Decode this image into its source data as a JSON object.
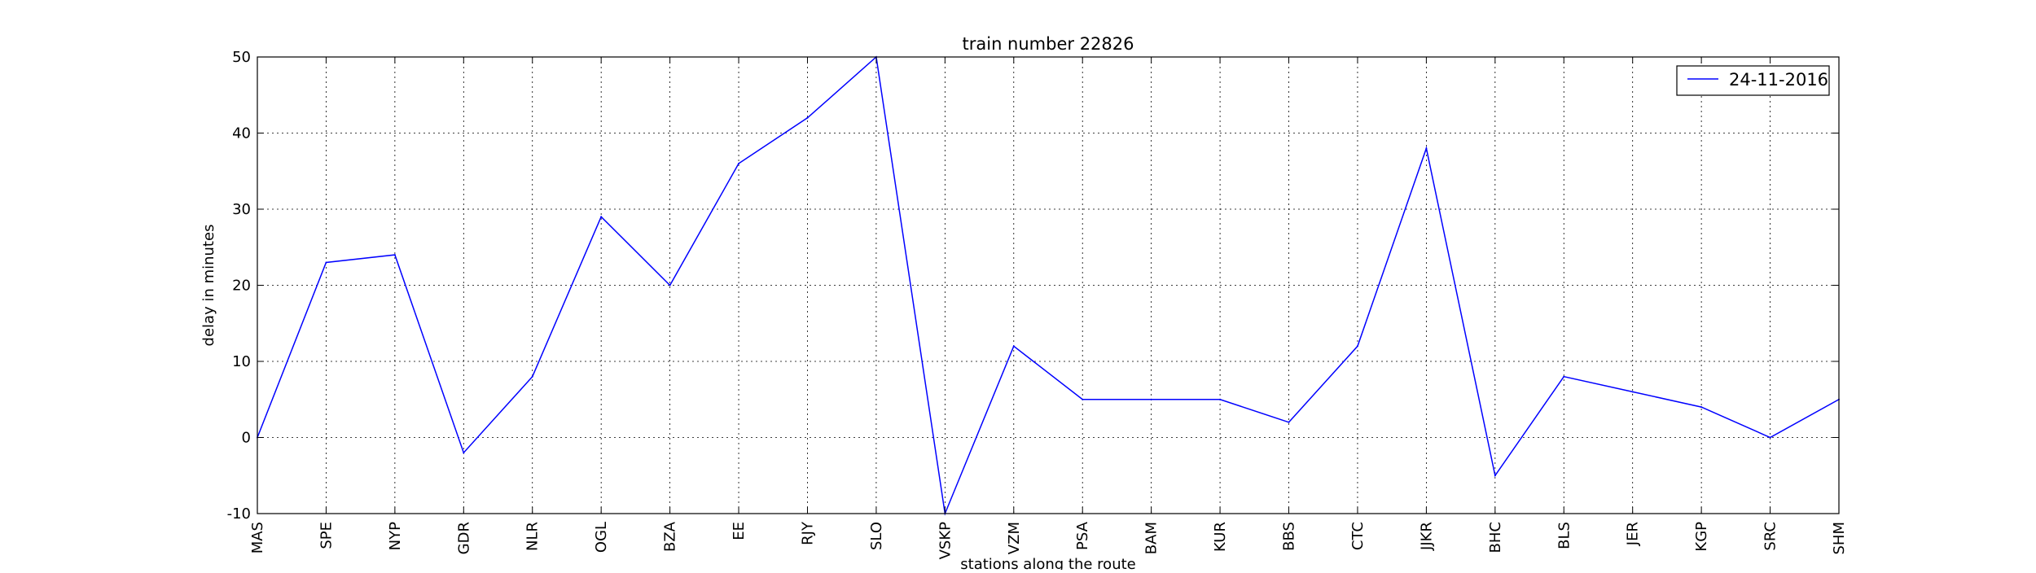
{
  "chart_data": {
    "type": "line",
    "title": "train number 22826",
    "xlabel": "stations along the route",
    "ylabel": "delay in minutes",
    "categories": [
      "MAS",
      "SPE",
      "NYP",
      "GDR",
      "NLR",
      "OGL",
      "BZA",
      "EE",
      "RJY",
      "SLO",
      "VSKP",
      "VZM",
      "PSA",
      "BAM",
      "KUR",
      "BBS",
      "CTC",
      "JJKR",
      "BHC",
      "BLS",
      "JER",
      "KGP",
      "SRC",
      "SHM"
    ],
    "series": [
      {
        "name": "24-11-2016",
        "color": "#0000ff",
        "values": [
          0,
          23,
          24,
          -2,
          8,
          29,
          20,
          36,
          42,
          50,
          -10,
          12,
          5,
          5,
          5,
          2,
          12,
          38,
          -5,
          8,
          6,
          4,
          0,
          5
        ]
      }
    ],
    "ylim": [
      -10,
      50
    ],
    "yticks": [
      -10,
      0,
      10,
      20,
      30,
      40,
      50
    ],
    "grid": true,
    "legend_position": "top-right"
  }
}
